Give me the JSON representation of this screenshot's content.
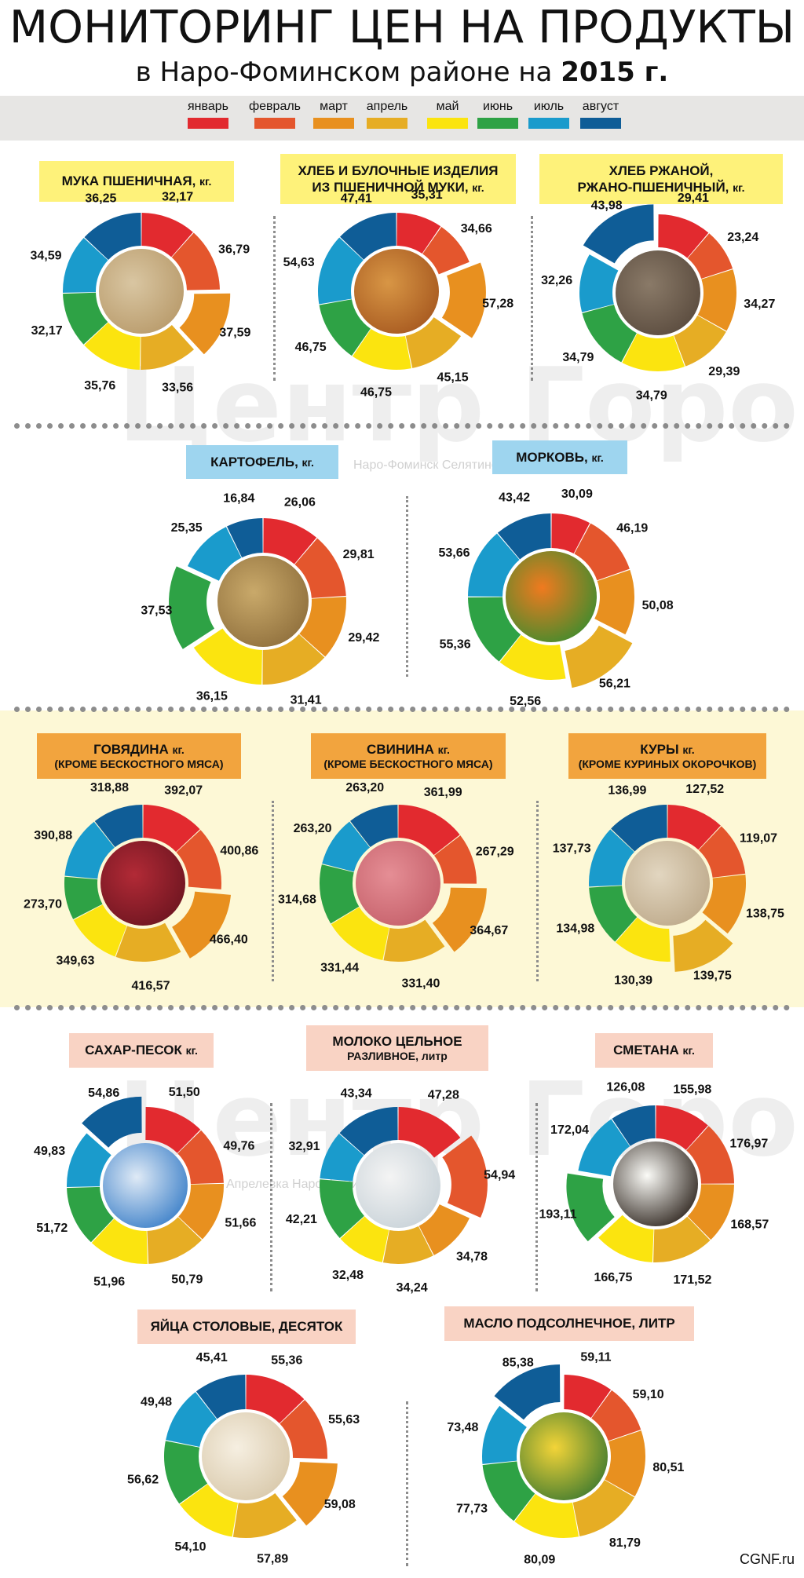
{
  "header": {
    "title": "МОНИТОРИНГ ЦЕН НА ПРОДУКТЫ",
    "subtitle_prefix": "в Наро-Фоминском районе на ",
    "subtitle_year": "2015 г."
  },
  "legend": [
    {
      "label": "январь",
      "color": "#e22a2f"
    },
    {
      "label": "февраль",
      "color": "#e4562d"
    },
    {
      "label": "март",
      "color": "#e8901f"
    },
    {
      "label": "апрель",
      "color": "#e6ad24"
    },
    {
      "label": "май",
      "color": "#fbe40f"
    },
    {
      "label": "июнь",
      "color": "#2ea245"
    },
    {
      "label": "июль",
      "color": "#1a9bcc"
    },
    {
      "label": "август",
      "color": "#0f5d97"
    }
  ],
  "watermark": {
    "text": "Центр Города",
    "sub1": "Наро-Фоминск  Селятино",
    "sub2": "Апрелевка  Наро-Фоминск  Селятино"
  },
  "credit": "CGNF.ru",
  "chart_data": [
    {
      "type": "pie",
      "name_line1": "МУКА ПШЕНИЧНАЯ,",
      "name_unit": "кг.",
      "name_line2": "",
      "categories": [
        "январь",
        "февраль",
        "март",
        "апрель",
        "май",
        "июнь",
        "июль",
        "август"
      ],
      "values": [
        32.17,
        36.79,
        37.59,
        33.56,
        35.76,
        32.17,
        34.59,
        36.25
      ],
      "labels": [
        "32,17",
        "36,79",
        "37,59",
        "33,56",
        "35,76",
        "32,17",
        "34,59",
        "36,25"
      ],
      "exploded": [
        2
      ],
      "image": "wheat"
    },
    {
      "type": "pie",
      "name_line1": "ХЛЕБ И БУЛОЧНЫЕ ИЗДЕЛИЯ",
      "name_line2": "ИЗ ПШЕНИЧНОЙ МУКИ,",
      "name_unit": "кг.",
      "categories": [
        "январь",
        "февраль",
        "март",
        "апрель",
        "май",
        "июнь",
        "июль",
        "август"
      ],
      "values": [
        35.31,
        34.66,
        57.28,
        45.15,
        46.75,
        46.75,
        54.63,
        47.41
      ],
      "labels": [
        "35,31",
        "34,66",
        "57,28",
        "45,15",
        "46,75",
        "46,75",
        "54,63",
        "47,41"
      ],
      "exploded": [
        2
      ],
      "image": "bread"
    },
    {
      "type": "pie",
      "name_line1": "ХЛЕБ РЖАНОЙ,",
      "name_line2": "РЖАНО-ПШЕНИЧНЫЙ,",
      "name_unit": "кг.",
      "categories": [
        "январь",
        "февраль",
        "март",
        "апрель",
        "май",
        "июнь",
        "июль",
        "август"
      ],
      "values": [
        29.41,
        23.24,
        34.27,
        29.39,
        34.79,
        34.79,
        32.26,
        43.98
      ],
      "labels": [
        "29,41",
        "23,24",
        "34,27",
        "29,39",
        "34,79",
        "34,79",
        "32,26",
        "43,98"
      ],
      "exploded": [
        7
      ],
      "image": "rye"
    },
    {
      "type": "pie",
      "name_line1": "КАРТОФЕЛЬ,",
      "name_unit": "кг.",
      "name_line2": "",
      "categories": [
        "январь",
        "февраль",
        "март",
        "апрель",
        "май",
        "июнь",
        "июль",
        "август"
      ],
      "values": [
        26.06,
        29.81,
        29.42,
        31.41,
        36.15,
        37.53,
        25.35,
        16.84
      ],
      "labels": [
        "26,06",
        "29,81",
        "29,42",
        "31,41",
        "36,15",
        "37,53",
        "25,35",
        "16,84"
      ],
      "exploded": [
        5
      ],
      "image": "potato"
    },
    {
      "type": "pie",
      "name_line1": "МОРКОВЬ,",
      "name_unit": "кг.",
      "name_line2": "",
      "categories": [
        "январь",
        "февраль",
        "март",
        "апрель",
        "май",
        "июнь",
        "июль",
        "август"
      ],
      "values": [
        30.09,
        46.19,
        50.08,
        56.21,
        52.56,
        55.36,
        53.66,
        43.42
      ],
      "labels": [
        "30,09",
        "46,19",
        "50,08",
        "56,21",
        "52,56",
        "55,36",
        "53,66",
        "43,42"
      ],
      "exploded": [
        3
      ],
      "image": "carrot"
    },
    {
      "type": "pie",
      "name_line1": "ГОВЯДИНА",
      "name_unit": "кг.",
      "name_line2": "(КРОМЕ БЕСКОСТНОГО МЯСА)",
      "categories": [
        "январь",
        "февраль",
        "март",
        "апрель",
        "май",
        "июнь",
        "июль",
        "август"
      ],
      "values": [
        392.07,
        400.86,
        466.4,
        416.57,
        349.63,
        273.7,
        390.88,
        318.88
      ],
      "labels": [
        "392,07",
        "400,86",
        "466,40",
        "416,57",
        "349,63",
        "273,70",
        "390,88",
        "318,88"
      ],
      "exploded": [
        2
      ],
      "image": "beef"
    },
    {
      "type": "pie",
      "name_line1": "СВИНИНА",
      "name_unit": "кг.",
      "name_line2": "(КРОМЕ БЕСКОСТНОГО МЯСА)",
      "categories": [
        "январь",
        "февраль",
        "март",
        "апрель",
        "май",
        "июнь",
        "июль",
        "август"
      ],
      "values": [
        361.99,
        267.29,
        364.67,
        331.4,
        331.44,
        314.68,
        263.2,
        263.2
      ],
      "labels": [
        "361,99",
        "267,29",
        "364,67",
        "331,40",
        "331,44",
        "314,68",
        "263,20",
        "263,20"
      ],
      "exploded": [
        2
      ],
      "image": "pork"
    },
    {
      "type": "pie",
      "name_line1": "КУРЫ",
      "name_unit": "кг.",
      "name_line2": "(КРОМЕ КУРИНЫХ ОКОРОЧКОВ)",
      "categories": [
        "январь",
        "февраль",
        "март",
        "апрель",
        "май",
        "июнь",
        "июль",
        "август"
      ],
      "values": [
        127.52,
        119.07,
        138.75,
        139.75,
        130.39,
        134.98,
        137.73,
        136.99
      ],
      "labels": [
        "127,52",
        "119,07",
        "138,75",
        "139,75",
        "130,39",
        "134,98",
        "137,73",
        "136,99"
      ],
      "exploded": [
        3
      ],
      "image": "chicken"
    },
    {
      "type": "pie",
      "name_line1": "САХАР-ПЕСОК",
      "name_unit": "кг.",
      "name_line2": "",
      "categories": [
        "январь",
        "февраль",
        "март",
        "апрель",
        "май",
        "июнь",
        "июль",
        "август"
      ],
      "values": [
        51.5,
        49.76,
        51.66,
        50.79,
        51.96,
        51.72,
        49.83,
        54.86
      ],
      "labels": [
        "51,50",
        "49,76",
        "51,66",
        "50,79",
        "51,96",
        "51,72",
        "49,83",
        "54,86"
      ],
      "exploded": [
        7
      ],
      "image": "sugar"
    },
    {
      "type": "pie",
      "name_line1": "МОЛОКО ЦЕЛЬНОЕ",
      "name_line2": "РАЗЛИВНОЕ, литр",
      "name_unit": "",
      "categories": [
        "январь",
        "февраль",
        "март",
        "апрель",
        "май",
        "июнь",
        "июль",
        "август"
      ],
      "values": [
        47.28,
        54.94,
        34.78,
        34.24,
        32.48,
        42.21,
        32.91,
        43.34
      ],
      "labels": [
        "47,28",
        "54,94",
        "34,78",
        "34,24",
        "32,48",
        "42,21",
        "32,91",
        "43,34"
      ],
      "exploded": [
        1
      ],
      "image": "milk"
    },
    {
      "type": "pie",
      "name_line1": "СМЕТАНА",
      "name_unit": "кг.",
      "name_line2": "",
      "categories": [
        "январь",
        "февраль",
        "март",
        "апрель",
        "май",
        "июнь",
        "июль",
        "август"
      ],
      "values": [
        155.98,
        176.97,
        168.57,
        171.52,
        166.75,
        193.11,
        172.04,
        126.08
      ],
      "labels": [
        "155,98",
        "176,97",
        "168,57",
        "171,52",
        "166,75",
        "193,11",
        "172,04",
        "126,08"
      ],
      "exploded": [
        5
      ],
      "image": "sourcream"
    },
    {
      "type": "pie",
      "name_line1": "ЯЙЦА СТОЛОВЫЕ, ДЕСЯТОК",
      "name_unit": "",
      "name_line2": "",
      "categories": [
        "январь",
        "февраль",
        "март",
        "апрель",
        "май",
        "июнь",
        "июль",
        "август"
      ],
      "values": [
        55.36,
        55.63,
        59.08,
        57.89,
        54.1,
        56.62,
        49.48,
        45.41
      ],
      "labels": [
        "55,36",
        "55,63",
        "59,08",
        "57,89",
        "54,10",
        "56,62",
        "49,48",
        "45,41"
      ],
      "exploded": [
        2
      ],
      "image": "eggs"
    },
    {
      "type": "pie",
      "name_line1": "МАСЛО ПОДСОЛНЕЧНОЕ, ЛИТР",
      "name_unit": "",
      "name_line2": "",
      "categories": [
        "январь",
        "февраль",
        "март",
        "апрель",
        "май",
        "июнь",
        "июль",
        "август"
      ],
      "values": [
        59.11,
        59.1,
        80.51,
        81.79,
        80.09,
        77.73,
        73.48,
        85.38
      ],
      "labels": [
        "59,11",
        "59,10",
        "80,51",
        "81,79",
        "80,09",
        "77,73",
        "73,48",
        "85,38"
      ],
      "exploded": [
        7
      ],
      "image": "oil"
    }
  ]
}
